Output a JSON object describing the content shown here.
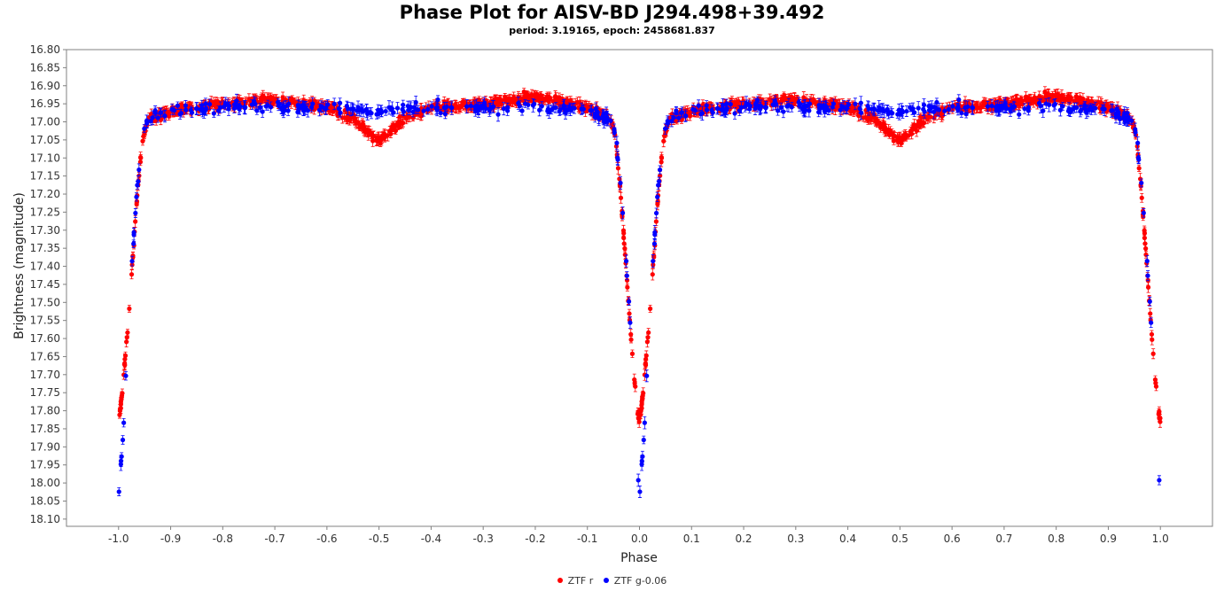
{
  "chart_data": {
    "type": "scatter",
    "title": "Phase Plot for AISV-BD J294.498+39.492",
    "subtitle": "period: 3.19165, epoch: 2458681.837",
    "xlabel": "Phase",
    "ylabel": "Brightness (magnitude)",
    "xlim": [
      -1.1,
      1.1
    ],
    "ylim": [
      18.12,
      16.8
    ],
    "y_inverted": true,
    "x_ticks": [
      "-1.0",
      "-0.9",
      "-0.8",
      "-0.7",
      "-0.6",
      "-0.5",
      "-0.4",
      "-0.3",
      "-0.2",
      "-0.1",
      "0.0",
      "0.1",
      "0.2",
      "0.3",
      "0.4",
      "0.5",
      "0.6",
      "0.7",
      "0.8",
      "0.9",
      "1.0"
    ],
    "y_ticks": [
      "16.80",
      "16.85",
      "16.90",
      "16.95",
      "17.00",
      "17.05",
      "17.10",
      "17.15",
      "17.20",
      "17.25",
      "17.30",
      "17.35",
      "17.40",
      "17.45",
      "17.50",
      "17.55",
      "17.60",
      "17.65",
      "17.70",
      "17.75",
      "17.80",
      "17.85",
      "17.90",
      "17.95",
      "18.00",
      "18.05",
      "18.10"
    ],
    "grid": false,
    "legend_position": "bottom-center",
    "series": [
      {
        "name": "ZTF r",
        "color": "#ff0000",
        "profile": {
          "phase": [
            0.0,
            0.005,
            0.01,
            0.015,
            0.02,
            0.025,
            0.03,
            0.035,
            0.04,
            0.045,
            0.05,
            0.06,
            0.1,
            0.2,
            0.3,
            0.4,
            0.45,
            0.48,
            0.5,
            0.52,
            0.55,
            0.6,
            0.7,
            0.8,
            0.9,
            0.94,
            0.95,
            0.955,
            0.96,
            0.965,
            0.97,
            0.975,
            0.98,
            0.985,
            0.99,
            0.995,
            1.0
          ],
          "magnitude": [
            17.84,
            17.78,
            17.7,
            17.62,
            17.52,
            17.42,
            17.32,
            17.22,
            17.14,
            17.06,
            17.02,
            16.99,
            16.97,
            16.95,
            16.94,
            16.96,
            16.99,
            17.03,
            17.05,
            17.03,
            16.99,
            16.96,
            16.95,
            16.93,
            16.96,
            16.99,
            17.02,
            17.06,
            17.14,
            17.22,
            17.32,
            17.42,
            17.52,
            17.62,
            17.7,
            17.78,
            17.84
          ]
        }
      },
      {
        "name": "ZTF g-0.06",
        "color": "#0000ff",
        "profile": {
          "phase": [
            0.0,
            0.005,
            0.01,
            0.015,
            0.02,
            0.025,
            0.03,
            0.035,
            0.04,
            0.045,
            0.05,
            0.06,
            0.1,
            0.2,
            0.3,
            0.4,
            0.5,
            0.6,
            0.7,
            0.8,
            0.9,
            0.94,
            0.95,
            0.955,
            0.96,
            0.965,
            0.97,
            0.975,
            0.98,
            0.985,
            0.99,
            0.995,
            1.0
          ],
          "magnitude": [
            18.03,
            17.94,
            17.83,
            17.66,
            17.5,
            17.4,
            17.3,
            17.2,
            17.12,
            17.05,
            17.01,
            16.99,
            16.97,
            16.96,
            16.96,
            16.96,
            16.97,
            16.96,
            16.96,
            16.96,
            16.97,
            16.99,
            17.01,
            17.05,
            17.12,
            17.2,
            17.3,
            17.4,
            17.5,
            17.66,
            17.83,
            17.94,
            18.03
          ]
        }
      }
    ]
  }
}
